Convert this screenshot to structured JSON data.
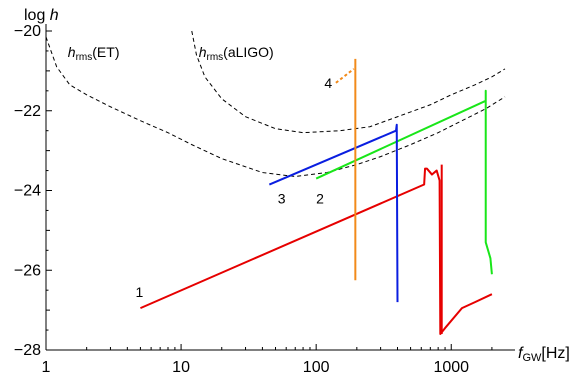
{
  "chart_data": {
    "type": "line",
    "title": "",
    "x_scale": "log",
    "y_scale": "linear",
    "xlim": [
      1,
      2500
    ],
    "ylim": [
      -28,
      -20
    ],
    "x_axis_label": {
      "main": "f",
      "sub": "GW",
      "suffix": "[Hz]"
    },
    "y_axis_label": {
      "prefix": "log ",
      "main": "h"
    },
    "x_ticks": [
      {
        "value": 1,
        "label": "1"
      },
      {
        "value": 10,
        "label": "10"
      },
      {
        "value": 100,
        "label": "100"
      },
      {
        "value": 1000,
        "label": "1000"
      }
    ],
    "y_ticks": [
      {
        "value": -20,
        "label": "−20"
      },
      {
        "value": -22,
        "label": "−22"
      },
      {
        "value": -24,
        "label": "−24"
      },
      {
        "value": -26,
        "label": "−26"
      },
      {
        "value": -28,
        "label": "−28"
      }
    ],
    "reference_curves": [
      {
        "label_main": "h",
        "label_sub": "rms",
        "label_paren": "(ET)",
        "style": "dashed",
        "color": "#000000",
        "label_at": {
          "x": 1.45,
          "y": -20.65
        },
        "points": [
          [
            1.0,
            -20.15
          ],
          [
            1.2,
            -20.9
          ],
          [
            1.5,
            -21.35
          ],
          [
            2.0,
            -21.6
          ],
          [
            3.0,
            -21.9
          ],
          [
            5.0,
            -22.25
          ],
          [
            8.0,
            -22.55
          ],
          [
            12.0,
            -22.85
          ],
          [
            20.0,
            -23.2
          ],
          [
            40.0,
            -23.55
          ],
          [
            70.0,
            -23.65
          ],
          [
            120.0,
            -23.55
          ],
          [
            200.0,
            -23.35
          ],
          [
            300.0,
            -23.15
          ],
          [
            500.0,
            -22.85
          ],
          [
            800.0,
            -22.55
          ],
          [
            1200.0,
            -22.25
          ],
          [
            1800.0,
            -21.95
          ],
          [
            2500.0,
            -21.65
          ]
        ]
      },
      {
        "label_main": "h",
        "label_sub": "rms",
        "label_paren": "(aLIGO)",
        "style": "dashed",
        "color": "#000000",
        "label_at": {
          "x": 13.5,
          "y": -20.65
        },
        "points": [
          [
            12.0,
            -20.0
          ],
          [
            13.0,
            -20.6
          ],
          [
            15.0,
            -21.15
          ],
          [
            20.0,
            -21.7
          ],
          [
            30.0,
            -22.15
          ],
          [
            50.0,
            -22.45
          ],
          [
            80.0,
            -22.55
          ],
          [
            150.0,
            -22.5
          ],
          [
            250.0,
            -22.4
          ],
          [
            400.0,
            -22.15
          ],
          [
            700.0,
            -21.85
          ],
          [
            1000.0,
            -21.6
          ],
          [
            1500.0,
            -21.35
          ],
          [
            2000.0,
            -21.15
          ],
          [
            2500.0,
            -20.95
          ]
        ]
      }
    ],
    "series": [
      {
        "name": "1",
        "color": "#e60000",
        "style": "solid",
        "label_at": {
          "x": 4.6,
          "y": -26.55
        },
        "points": [
          [
            5.0,
            -26.95
          ],
          [
            630.0,
            -23.85
          ],
          [
            640.0,
            -23.45
          ],
          [
            660.0,
            -23.45
          ],
          [
            720.0,
            -23.6
          ],
          [
            780.0,
            -23.5
          ],
          [
            820.0,
            -23.75
          ],
          [
            830.0,
            -27.6
          ],
          [
            900.0,
            -27.45
          ],
          [
            1200.0,
            -26.95
          ],
          [
            1500.0,
            -26.8
          ],
          [
            2000.0,
            -26.6
          ]
        ]
      },
      {
        "name": "",
        "color": "#e60000",
        "style": "solid",
        "points": [
          [
            850.0,
            -23.35
          ],
          [
            850.0,
            -27.6
          ]
        ]
      },
      {
        "name": "2",
        "color": "#19e619",
        "style": "solid",
        "label_at": {
          "x": 100.0,
          "y": -24.2
        },
        "points": [
          [
            100.0,
            -23.7
          ],
          [
            1800.0,
            -21.75
          ],
          [
            1800.0,
            -21.5
          ],
          [
            1800.0,
            -25.3
          ],
          [
            1950.0,
            -25.7
          ],
          [
            2000.0,
            -26.1
          ]
        ]
      },
      {
        "name": "3",
        "color": "#0a1ee0",
        "style": "solid",
        "label_at": {
          "x": 52.0,
          "y": -24.2
        },
        "points": [
          [
            45.0,
            -23.85
          ],
          [
            390.0,
            -22.5
          ],
          [
            395.0,
            -22.35
          ],
          [
            400.0,
            -26.75
          ],
          [
            400.0,
            -26.8
          ]
        ]
      },
      {
        "name": "",
        "color": "#f28a1a",
        "style": "solid",
        "points": [
          [
            195.0,
            -20.7
          ],
          [
            195.0,
            -26.25
          ]
        ]
      },
      {
        "name": "4",
        "color": "#f28a1a",
        "style": "dotted",
        "label_at": {
          "x": 115.0,
          "y": -21.3
        },
        "points": [
          [
            140.0,
            -21.3
          ],
          [
            190.0,
            -20.95
          ]
        ]
      }
    ]
  }
}
